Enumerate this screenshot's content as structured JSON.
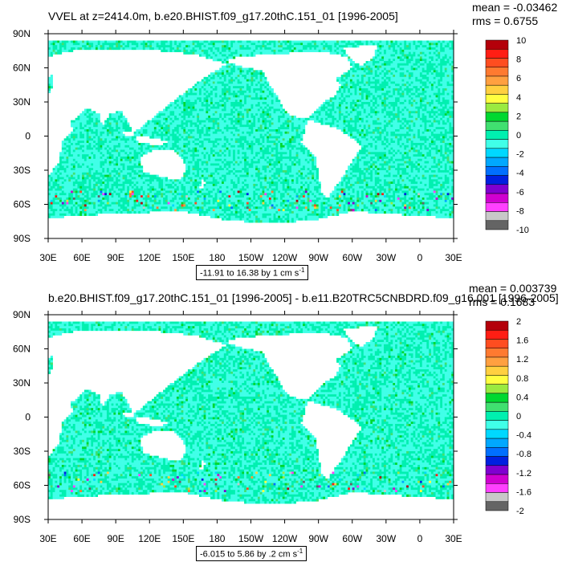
{
  "chart_data": [
    {
      "type": "heatmap",
      "title": "VVEL at z=2414.0m, b.e20.BHIST.f09_g17.20thC.151_01 [1996-2005]",
      "stats": {
        "mean": "mean = -0.03462",
        "rms": "rms = 0.6755"
      },
      "caption": "-11.91 to 16.38 by 1 cm s",
      "caption_sup": "-1",
      "x_ticks": [
        "30E",
        "60E",
        "90E",
        "120E",
        "150E",
        "180",
        "150W",
        "120W",
        "90W",
        "60W",
        "30W",
        "0",
        "30E"
      ],
      "y_ticks": [
        "90N",
        "60N",
        "30N",
        "0",
        "30S",
        "60S",
        "90S"
      ],
      "colorbar_labels": [
        "10",
        "8",
        "6",
        "4",
        "2",
        "0",
        "-2",
        "-4",
        "-6",
        "-8",
        "-10"
      ],
      "colorbar_colors": [
        "#b4000a",
        "#ff1e14",
        "#ff4d20",
        "#ff7a30",
        "#ffa040",
        "#ffd040",
        "#ffff40",
        "#9aea40",
        "#00d830",
        "#40e070",
        "#00f0b0",
        "#40ffe8",
        "#00d8ff",
        "#00a8ff",
        "#0070ff",
        "#0020e0",
        "#8000d0",
        "#d000d0",
        "#ff40ff",
        "#c8c8c8",
        "#646464"
      ],
      "field_range": [
        -11.91,
        16.38
      ],
      "contour_interval": 1
    },
    {
      "type": "heatmap",
      "title": "b.e20.BHIST.f09_g17.20thC.151_01 [1996-2005] - b.e11.B20TRC5CNBDRD.f09_g16.001 [1996-2005]",
      "stats": {
        "mean": "mean = 0.003739",
        "rms": "rms = 0.1683"
      },
      "caption": "-6.015 to 5.86 by .2 cm s",
      "caption_sup": "-1",
      "x_ticks": [
        "30E",
        "60E",
        "90E",
        "120E",
        "150E",
        "180",
        "150W",
        "120W",
        "90W",
        "60W",
        "30W",
        "0",
        "30E"
      ],
      "y_ticks": [
        "90N",
        "60N",
        "30N",
        "0",
        "30S",
        "60S",
        "90S"
      ],
      "colorbar_labels": [
        "2",
        "1.6",
        "1.2",
        "0.8",
        "0.4",
        "0",
        "-0.4",
        "-0.8",
        "-1.2",
        "-1.6",
        "-2"
      ],
      "colorbar_colors": [
        "#b4000a",
        "#ff1e14",
        "#ff4d20",
        "#ff7a30",
        "#ffa040",
        "#ffd040",
        "#ffff40",
        "#9aea40",
        "#00d830",
        "#40e070",
        "#00f0b0",
        "#40ffe8",
        "#00d8ff",
        "#00a8ff",
        "#0070ff",
        "#0020e0",
        "#8000d0",
        "#d000d0",
        "#ff40ff",
        "#c8c8c8",
        "#646464"
      ],
      "field_range": [
        -6.015,
        5.86
      ],
      "contour_interval": 0.2
    }
  ]
}
